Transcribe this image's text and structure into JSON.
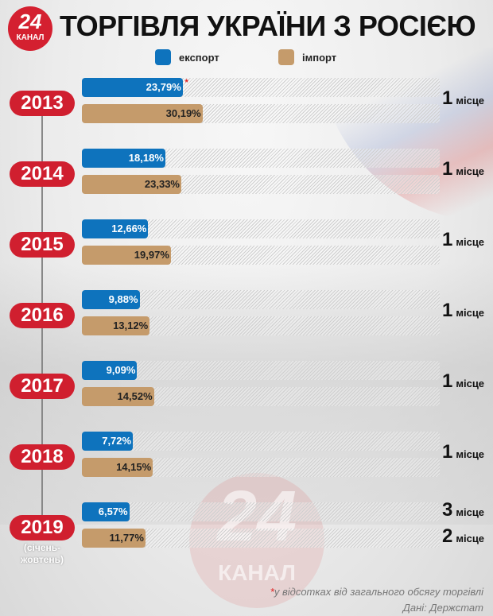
{
  "header": {
    "title": "ТОРГІВЛЯ УКРАЇНИ З РОСІЄЮ",
    "logo_number": "24",
    "logo_word": "КАНАЛ"
  },
  "legend": [
    {
      "label": "експорт",
      "color": "#0e73bd"
    },
    {
      "label": "імпорт",
      "color": "#c59b6b"
    }
  ],
  "chart_data": {
    "type": "bar",
    "orientation": "horizontal",
    "unit": "%",
    "categories": [
      "2013",
      "2014",
      "2015",
      "2016",
      "2017",
      "2018",
      "2019"
    ],
    "category_note": "(січень-жовтень)",
    "series": [
      {
        "name": "експорт",
        "color": "#0e73bd",
        "values": [
          23.79,
          18.18,
          12.66,
          9.88,
          9.09,
          7.72,
          6.57
        ],
        "labels": [
          "23,79%",
          "18,18%",
          "12,66%",
          "9,88%",
          "9,09%",
          "7,72%",
          "6,57%"
        ]
      },
      {
        "name": "імпорт",
        "color": "#c59b6b",
        "values": [
          30.19,
          23.33,
          19.97,
          13.12,
          14.52,
          14.15,
          11.77
        ],
        "labels": [
          "30,19%",
          "23,33%",
          "19,97%",
          "13,12%",
          "14,52%",
          "14,15%",
          "11,77%"
        ]
      }
    ],
    "ranks": [
      [
        "1"
      ],
      [
        "1"
      ],
      [
        "1"
      ],
      [
        "1"
      ],
      [
        "1"
      ],
      [
        "1"
      ],
      [
        "3",
        "2"
      ]
    ],
    "rank_word": "місце"
  },
  "footer": {
    "asterisk": "*",
    "note": "у відсотках від загального обсягу торгівлі",
    "source": "Дані: Держстат"
  },
  "watermark": {
    "number": "24",
    "word": "КАНАЛ"
  }
}
